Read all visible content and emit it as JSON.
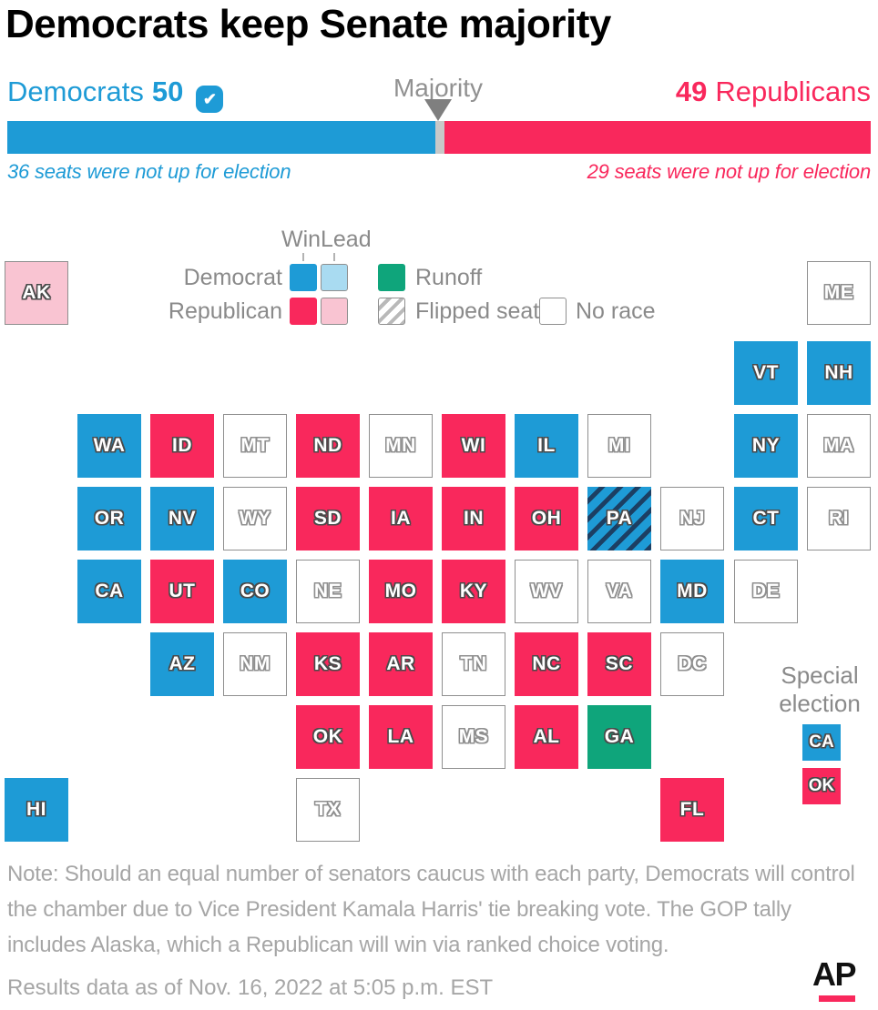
{
  "title": "Democrats keep Senate majority",
  "header": {
    "dem_name": "Democrats",
    "dem_count": "50",
    "check_mark": "✔",
    "majority_label": "Majority",
    "rep_count": "49",
    "rep_name": "Republicans",
    "dem_note": "36 seats were not up for election",
    "rep_note": "29 seats were not up for election"
  },
  "legend": {
    "win": "Win",
    "lead": "Lead",
    "democrat": "Democrat",
    "republican": "Republican",
    "runoff": "Runoff",
    "flipped": "Flipped seat",
    "no_race": "No race"
  },
  "special_election": {
    "label": "Special election",
    "tiles": [
      {
        "abbr": "CA",
        "status": "dem-win"
      },
      {
        "abbr": "OK",
        "status": "rep-win"
      }
    ]
  },
  "note": "Note: Should an equal number of senators caucus with each party, Democrats will control the chamber due to Vice President Kamala Harris' tie breaking vote. The GOP tally includes Alaska, which a Republican will win via ranked choice voting.",
  "footer": {
    "timestamp": "Results data as of Nov. 16, 2022 at 5:05 p.m. EST",
    "logo": "AP"
  },
  "colors": {
    "dem_win": "#1e9bd6",
    "dem_lead": "#a9dbf1",
    "rep_win": "#f9285c",
    "rep_lead": "#f9c4d2",
    "runoff": "#0fa57b",
    "flip_stripe": "#1c3f63",
    "no_race_fill": "#ffffff",
    "swatch_border": "#8f8f8f",
    "majority_gap": "#c8c8c8",
    "gray_text": "#8a8a8a",
    "note_text": "#a6a6a6",
    "ap_red": "#f9285c"
  },
  "chart_data": [
    {
      "type": "bar",
      "title": "U.S. Senate seats won",
      "categories": [
        "Democrats",
        "Republicans"
      ],
      "values": [
        50,
        49
      ],
      "total_seats": 100,
      "majority_threshold": 50,
      "majority_label": "Majority",
      "annotations": [
        "36 seats were not up for election",
        "29 seats were not up for election"
      ],
      "xlim": [
        0,
        100
      ],
      "legend_position": "none"
    },
    {
      "type": "heatmap",
      "subtype": "us-tile-cartogram",
      "title": "2022 Senate race results by state",
      "status_labels": {
        "dem-win": "Democrat win",
        "dem-lead": "Democrat lead",
        "rep-win": "Republican win",
        "rep-lead": "Republican lead",
        "runoff": "Runoff",
        "dem-flip": "Flipped seat (Democrat win)",
        "no-race": "No race"
      },
      "tiles": [
        {
          "abbr": "AK",
          "col": 0,
          "row": 0,
          "status": "rep-lead"
        },
        {
          "abbr": "ME",
          "col": 11,
          "row": 0,
          "status": "no-race"
        },
        {
          "abbr": "VT",
          "col": 10,
          "row": 1,
          "status": "dem-win"
        },
        {
          "abbr": "NH",
          "col": 11,
          "row": 1,
          "status": "dem-win"
        },
        {
          "abbr": "WA",
          "col": 1,
          "row": 2,
          "status": "dem-win"
        },
        {
          "abbr": "ID",
          "col": 2,
          "row": 2,
          "status": "rep-win"
        },
        {
          "abbr": "MT",
          "col": 3,
          "row": 2,
          "status": "no-race"
        },
        {
          "abbr": "ND",
          "col": 4,
          "row": 2,
          "status": "rep-win"
        },
        {
          "abbr": "MN",
          "col": 5,
          "row": 2,
          "status": "no-race"
        },
        {
          "abbr": "WI",
          "col": 6,
          "row": 2,
          "status": "rep-win"
        },
        {
          "abbr": "IL",
          "col": 7,
          "row": 2,
          "status": "dem-win"
        },
        {
          "abbr": "MI",
          "col": 8,
          "row": 2,
          "status": "no-race"
        },
        {
          "abbr": "NY",
          "col": 10,
          "row": 2,
          "status": "dem-win"
        },
        {
          "abbr": "MA",
          "col": 11,
          "row": 2,
          "status": "no-race"
        },
        {
          "abbr": "OR",
          "col": 1,
          "row": 3,
          "status": "dem-win"
        },
        {
          "abbr": "NV",
          "col": 2,
          "row": 3,
          "status": "dem-win"
        },
        {
          "abbr": "WY",
          "col": 3,
          "row": 3,
          "status": "no-race"
        },
        {
          "abbr": "SD",
          "col": 4,
          "row": 3,
          "status": "rep-win"
        },
        {
          "abbr": "IA",
          "col": 5,
          "row": 3,
          "status": "rep-win"
        },
        {
          "abbr": "IN",
          "col": 6,
          "row": 3,
          "status": "rep-win"
        },
        {
          "abbr": "OH",
          "col": 7,
          "row": 3,
          "status": "rep-win"
        },
        {
          "abbr": "PA",
          "col": 8,
          "row": 3,
          "status": "dem-flip"
        },
        {
          "abbr": "NJ",
          "col": 9,
          "row": 3,
          "status": "no-race"
        },
        {
          "abbr": "CT",
          "col": 10,
          "row": 3,
          "status": "dem-win"
        },
        {
          "abbr": "RI",
          "col": 11,
          "row": 3,
          "status": "no-race"
        },
        {
          "abbr": "CA",
          "col": 1,
          "row": 4,
          "status": "dem-win"
        },
        {
          "abbr": "UT",
          "col": 2,
          "row": 4,
          "status": "rep-win"
        },
        {
          "abbr": "CO",
          "col": 3,
          "row": 4,
          "status": "dem-win"
        },
        {
          "abbr": "NE",
          "col": 4,
          "row": 4,
          "status": "no-race"
        },
        {
          "abbr": "MO",
          "col": 5,
          "row": 4,
          "status": "rep-win"
        },
        {
          "abbr": "KY",
          "col": 6,
          "row": 4,
          "status": "rep-win"
        },
        {
          "abbr": "WV",
          "col": 7,
          "row": 4,
          "status": "no-race"
        },
        {
          "abbr": "VA",
          "col": 8,
          "row": 4,
          "status": "no-race"
        },
        {
          "abbr": "MD",
          "col": 9,
          "row": 4,
          "status": "dem-win"
        },
        {
          "abbr": "DE",
          "col": 10,
          "row": 4,
          "status": "no-race"
        },
        {
          "abbr": "AZ",
          "col": 2,
          "row": 5,
          "status": "dem-win"
        },
        {
          "abbr": "NM",
          "col": 3,
          "row": 5,
          "status": "no-race"
        },
        {
          "abbr": "KS",
          "col": 4,
          "row": 5,
          "status": "rep-win"
        },
        {
          "abbr": "AR",
          "col": 5,
          "row": 5,
          "status": "rep-win"
        },
        {
          "abbr": "TN",
          "col": 6,
          "row": 5,
          "status": "no-race"
        },
        {
          "abbr": "NC",
          "col": 7,
          "row": 5,
          "status": "rep-win"
        },
        {
          "abbr": "SC",
          "col": 8,
          "row": 5,
          "status": "rep-win"
        },
        {
          "abbr": "DC",
          "col": 9,
          "row": 5,
          "status": "no-race"
        },
        {
          "abbr": "OK",
          "col": 4,
          "row": 6,
          "status": "rep-win"
        },
        {
          "abbr": "LA",
          "col": 5,
          "row": 6,
          "status": "rep-win"
        },
        {
          "abbr": "MS",
          "col": 6,
          "row": 6,
          "status": "no-race"
        },
        {
          "abbr": "AL",
          "col": 7,
          "row": 6,
          "status": "rep-win"
        },
        {
          "abbr": "GA",
          "col": 8,
          "row": 6,
          "status": "runoff"
        },
        {
          "abbr": "HI",
          "col": 0,
          "row": 7,
          "status": "dem-win"
        },
        {
          "abbr": "TX",
          "col": 4,
          "row": 7,
          "status": "no-race"
        },
        {
          "abbr": "FL",
          "col": 9,
          "row": 7,
          "status": "rep-win"
        }
      ]
    }
  ]
}
